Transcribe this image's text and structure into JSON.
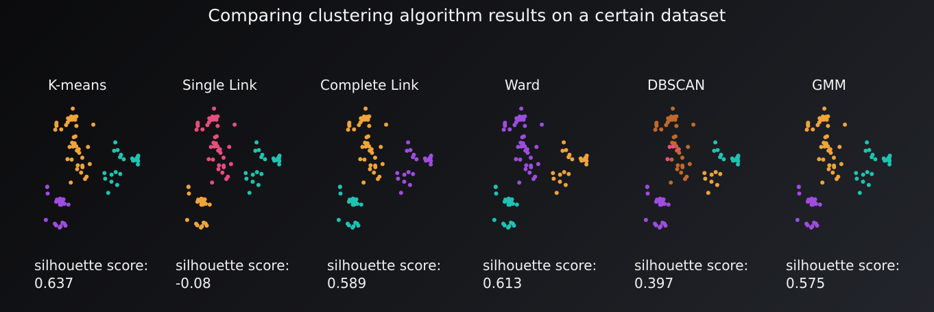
{
  "title": "Comparing clustering algorithm results on a certain dataset",
  "score_label": "silhouette score:",
  "colors": {
    "orange": "#f0a43a",
    "teal": "#1ec3b2",
    "purple": "#9e4de0",
    "pink": "#ea4d7c",
    "brown": "#c0692a",
    "background": "#141518"
  },
  "chart_data": [
    {
      "type": "scatter",
      "title": "K-means",
      "score": "0.637",
      "cluster_colors": [
        "orange",
        "teal",
        "purple"
      ]
    },
    {
      "type": "scatter",
      "title": "Single Link",
      "score": "-0.08",
      "cluster_colors": [
        "pink",
        "teal",
        "orange"
      ]
    },
    {
      "type": "scatter",
      "title": "Complete Link",
      "score": "0.589",
      "cluster_colors": [
        "orange",
        "purple",
        "teal"
      ]
    },
    {
      "type": "scatter",
      "title": "Ward",
      "score": "0.613",
      "cluster_colors": [
        "purple",
        "orange",
        "teal"
      ]
    },
    {
      "type": "scatter",
      "title": "DBSCAN",
      "score": "0.397",
      "cluster_colors": [
        "brown",
        "teal",
        "purple",
        "pink",
        "orange"
      ]
    },
    {
      "type": "scatter",
      "title": "GMM",
      "score": "0.575",
      "cluster_colors": [
        "orange",
        "teal",
        "purple"
      ]
    }
  ]
}
